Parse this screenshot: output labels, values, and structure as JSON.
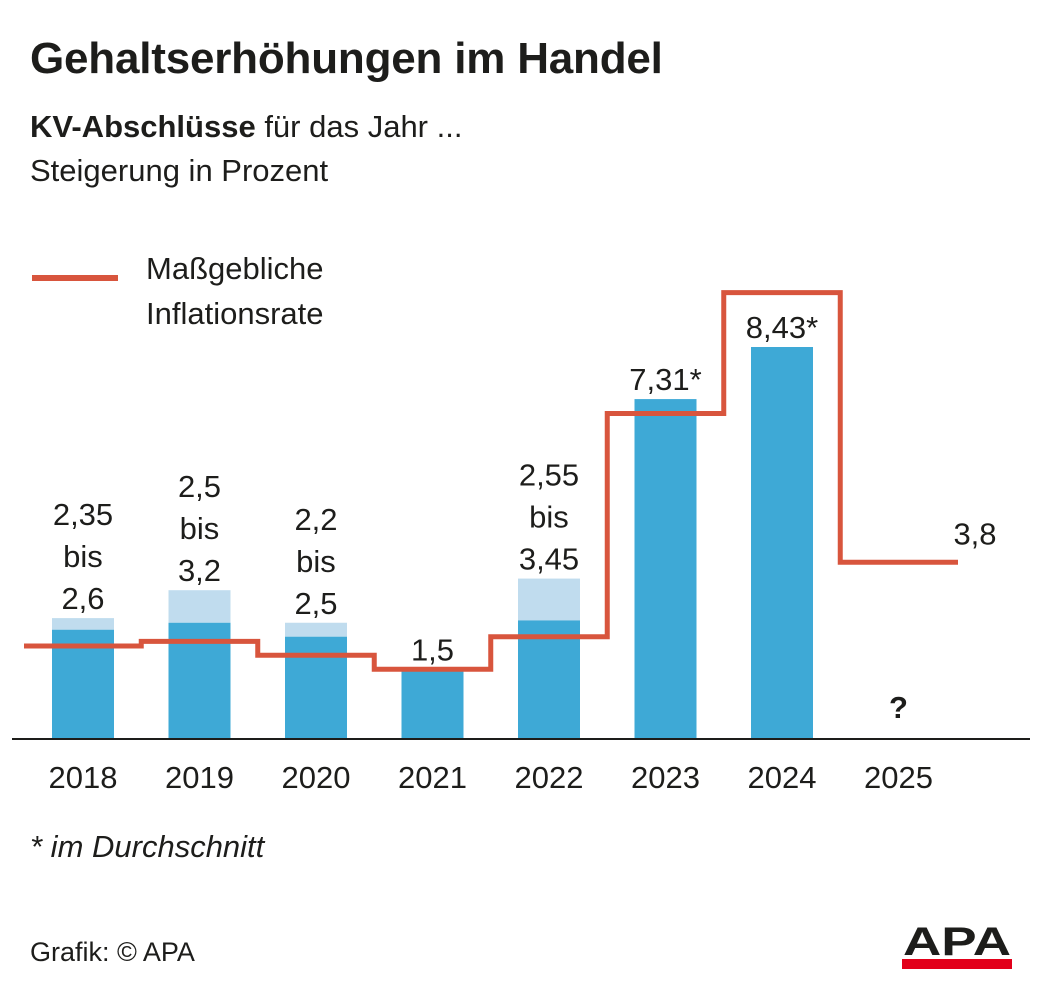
{
  "title": "Gehaltserhöhungen im Handel",
  "subtitle_bold": "KV-Abschlüsse",
  "subtitle_rest": " für das Jahr ...",
  "subtitle2": "Steigerung in Prozent",
  "legend_label_line1": "Maßgebliche",
  "legend_label_line2": "Inflationsrate",
  "footnote": "* im Durchschnitt",
  "source": "Grafik: © APA",
  "logo_text": "APA",
  "colors": {
    "bar": "#3ea9d6",
    "bar_range": "#c0dcee",
    "inflation": "#d8553d",
    "question": "#3ea9d6",
    "text": "#1d1d1b",
    "logo_bar": "#e2001a"
  },
  "chart_data": {
    "type": "bar",
    "categories": [
      "2018",
      "2019",
      "2020",
      "2021",
      "2022",
      "2023",
      "2024",
      "2025"
    ],
    "series": [
      {
        "name": "KV-Abschlüsse",
        "low": [
          2.35,
          2.5,
          2.2,
          1.5,
          2.55,
          7.31,
          8.43,
          null
        ],
        "high": [
          2.6,
          3.2,
          2.5,
          1.5,
          3.45,
          7.31,
          8.43,
          null
        ]
      },
      {
        "name": "Maßgebliche Inflationsrate",
        "values": [
          2.0,
          2.1,
          1.8,
          1.5,
          2.2,
          7.0,
          9.6,
          3.8
        ]
      }
    ],
    "data_labels": [
      [
        "2,35",
        "bis",
        "2,6"
      ],
      [
        "2,5",
        "bis",
        "3,2"
      ],
      [
        "2,2",
        "bis",
        "2,5"
      ],
      [
        "1,5"
      ],
      [
        "2,55",
        "bis",
        "3,45"
      ],
      [
        "7,31*"
      ],
      [
        "8,43*"
      ],
      [
        "?"
      ]
    ],
    "inflation_label": "3,8",
    "ylim": [
      0,
      9.6
    ],
    "grid": false,
    "legend": "top-left"
  }
}
